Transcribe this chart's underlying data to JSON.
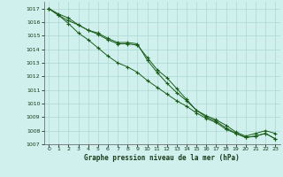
{
  "title": "Graphe pression niveau de la mer (hPa)",
  "background_color": "#cff0ec",
  "grid_color": "#aad8d0",
  "line_color": "#1a5c1a",
  "xlim": [
    -0.5,
    23.5
  ],
  "ylim": [
    1007,
    1017.5
  ],
  "yticks": [
    1007,
    1008,
    1009,
    1010,
    1011,
    1012,
    1013,
    1014,
    1015,
    1016,
    1017
  ],
  "xticks": [
    0,
    1,
    2,
    3,
    4,
    5,
    6,
    7,
    8,
    9,
    10,
    11,
    12,
    13,
    14,
    15,
    16,
    17,
    18,
    19,
    20,
    21,
    22,
    23
  ],
  "series1": [
    1017.0,
    1016.6,
    1016.3,
    1015.8,
    1015.4,
    1015.1,
    1014.7,
    1014.4,
    1014.4,
    1014.3,
    1013.4,
    1012.5,
    1011.9,
    1011.1,
    1010.3,
    1009.5,
    1009.1,
    1008.8,
    1008.4,
    1007.9,
    1007.6,
    1007.8,
    1008.0,
    1007.8
  ],
  "series2": [
    1017.0,
    1016.5,
    1016.1,
    1015.8,
    1015.4,
    1015.2,
    1014.8,
    1014.5,
    1014.5,
    1014.4,
    1013.2,
    1012.3,
    1011.5,
    1010.8,
    1010.2,
    1009.5,
    1009.0,
    1008.7,
    1008.2,
    1007.8,
    1007.5,
    1007.6,
    1007.8,
    1007.4
  ],
  "series3": [
    1017.0,
    1016.5,
    1015.9,
    1015.2,
    1014.7,
    1014.1,
    1013.5,
    1013.0,
    1012.7,
    1012.3,
    1011.7,
    1011.2,
    1010.7,
    1010.2,
    1009.8,
    1009.3,
    1008.9,
    1008.6,
    1008.1,
    1007.8,
    1007.5,
    1007.6,
    1007.8,
    1007.4
  ]
}
